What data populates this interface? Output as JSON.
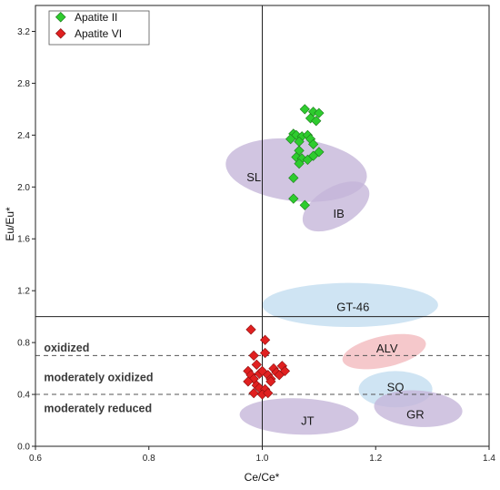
{
  "chart_data": {
    "type": "scatter",
    "xlabel": "Ce/Ce*",
    "ylabel": "Eu/Eu*",
    "xlim": [
      0.6,
      1.4
    ],
    "ylim": [
      0.0,
      3.4
    ],
    "xticks": [
      "0.6",
      "0.8",
      "1.0",
      "1.2",
      "1.4"
    ],
    "yticks": [
      "0.0",
      "0.4",
      "0.8",
      "1.2",
      "1.6",
      "2.0",
      "2.4",
      "2.8",
      "3.2"
    ],
    "legend_position": "top-left",
    "series": [
      {
        "name": "Apatite II",
        "color": "#2ecc2e",
        "marker": "diamond",
        "points": [
          [
            1.075,
            2.6
          ],
          [
            1.09,
            2.58
          ],
          [
            1.1,
            2.57
          ],
          [
            1.085,
            2.53
          ],
          [
            1.095,
            2.51
          ],
          [
            1.055,
            2.41
          ],
          [
            1.06,
            2.4
          ],
          [
            1.07,
            2.39
          ],
          [
            1.08,
            2.4
          ],
          [
            1.085,
            2.37
          ],
          [
            1.05,
            2.37
          ],
          [
            1.065,
            2.35
          ],
          [
            1.09,
            2.33
          ],
          [
            1.065,
            2.28
          ],
          [
            1.1,
            2.27
          ],
          [
            1.06,
            2.23
          ],
          [
            1.07,
            2.22
          ],
          [
            1.08,
            2.21
          ],
          [
            1.09,
            2.24
          ],
          [
            1.065,
            2.18
          ],
          [
            1.055,
            2.07
          ],
          [
            1.055,
            1.91
          ],
          [
            1.075,
            1.86
          ]
        ]
      },
      {
        "name": "Apatite VI",
        "color": "#e02020",
        "marker": "diamond",
        "points": [
          [
            0.98,
            0.9
          ],
          [
            1.005,
            0.82
          ],
          [
            0.985,
            0.7
          ],
          [
            1.005,
            0.72
          ],
          [
            0.99,
            0.63
          ],
          [
            0.975,
            0.58
          ],
          [
            0.98,
            0.55
          ],
          [
            0.985,
            0.52
          ],
          [
            0.975,
            0.5
          ],
          [
            0.99,
            0.47
          ],
          [
            0.995,
            0.56
          ],
          [
            1.0,
            0.58
          ],
          [
            1.01,
            0.55
          ],
          [
            1.015,
            0.52
          ],
          [
            1.02,
            0.6
          ],
          [
            1.025,
            0.57
          ],
          [
            1.035,
            0.62
          ],
          [
            1.04,
            0.58
          ],
          [
            1.03,
            0.55
          ],
          [
            1.015,
            0.5
          ],
          [
            0.995,
            0.45
          ],
          [
            1.005,
            0.44
          ],
          [
            1.0,
            0.4
          ],
          [
            0.985,
            0.41
          ],
          [
            1.01,
            0.41
          ]
        ]
      }
    ],
    "reference_lines": {
      "vertical_x": 1.0,
      "horizontal_y": 1.0,
      "dashed_y": [
        0.7,
        0.4
      ]
    },
    "zone_labels": [
      {
        "text": "oxidized",
        "x": 0.615,
        "y": 0.76
      },
      {
        "text": "moderately oxidized",
        "x": 0.615,
        "y": 0.53
      },
      {
        "text": "moderately reduced",
        "x": 0.615,
        "y": 0.29
      }
    ],
    "regions": [
      {
        "name": "SL",
        "cx": 1.06,
        "cy": 2.13,
        "rx": 0.125,
        "ry": 0.24,
        "rot": 6,
        "color": "#c4b5d8",
        "label_x": 0.985,
        "label_y": 2.08
      },
      {
        "name": "IB",
        "cx": 1.13,
        "cy": 1.85,
        "rx": 0.065,
        "ry": 0.15,
        "rot": -30,
        "color": "#c4b5d8",
        "label_x": 1.135,
        "label_y": 1.8
      },
      {
        "name": "GT-46",
        "cx": 1.155,
        "cy": 1.09,
        "rx": 0.155,
        "ry": 0.17,
        "rot": 0,
        "color": "#c2dcf0",
        "label_x": 1.16,
        "label_y": 1.08
      },
      {
        "name": "ALV",
        "cx": 1.215,
        "cy": 0.73,
        "rx": 0.075,
        "ry": 0.12,
        "rot": -12,
        "color": "#f2b8bc",
        "label_x": 1.22,
        "label_y": 0.76
      },
      {
        "name": "SQ",
        "cx": 1.235,
        "cy": 0.44,
        "rx": 0.065,
        "ry": 0.14,
        "rot": 0,
        "color": "#c2dcf0",
        "label_x": 1.235,
        "label_y": 0.46
      },
      {
        "name": "GR",
        "cx": 1.275,
        "cy": 0.29,
        "rx": 0.078,
        "ry": 0.14,
        "rot": 4,
        "color": "#c4b5d8",
        "label_x": 1.27,
        "label_y": 0.25
      },
      {
        "name": "JT",
        "cx": 1.065,
        "cy": 0.23,
        "rx": 0.105,
        "ry": 0.14,
        "rot": 2,
        "color": "#c4b5d8",
        "label_x": 1.08,
        "label_y": 0.2
      }
    ]
  }
}
